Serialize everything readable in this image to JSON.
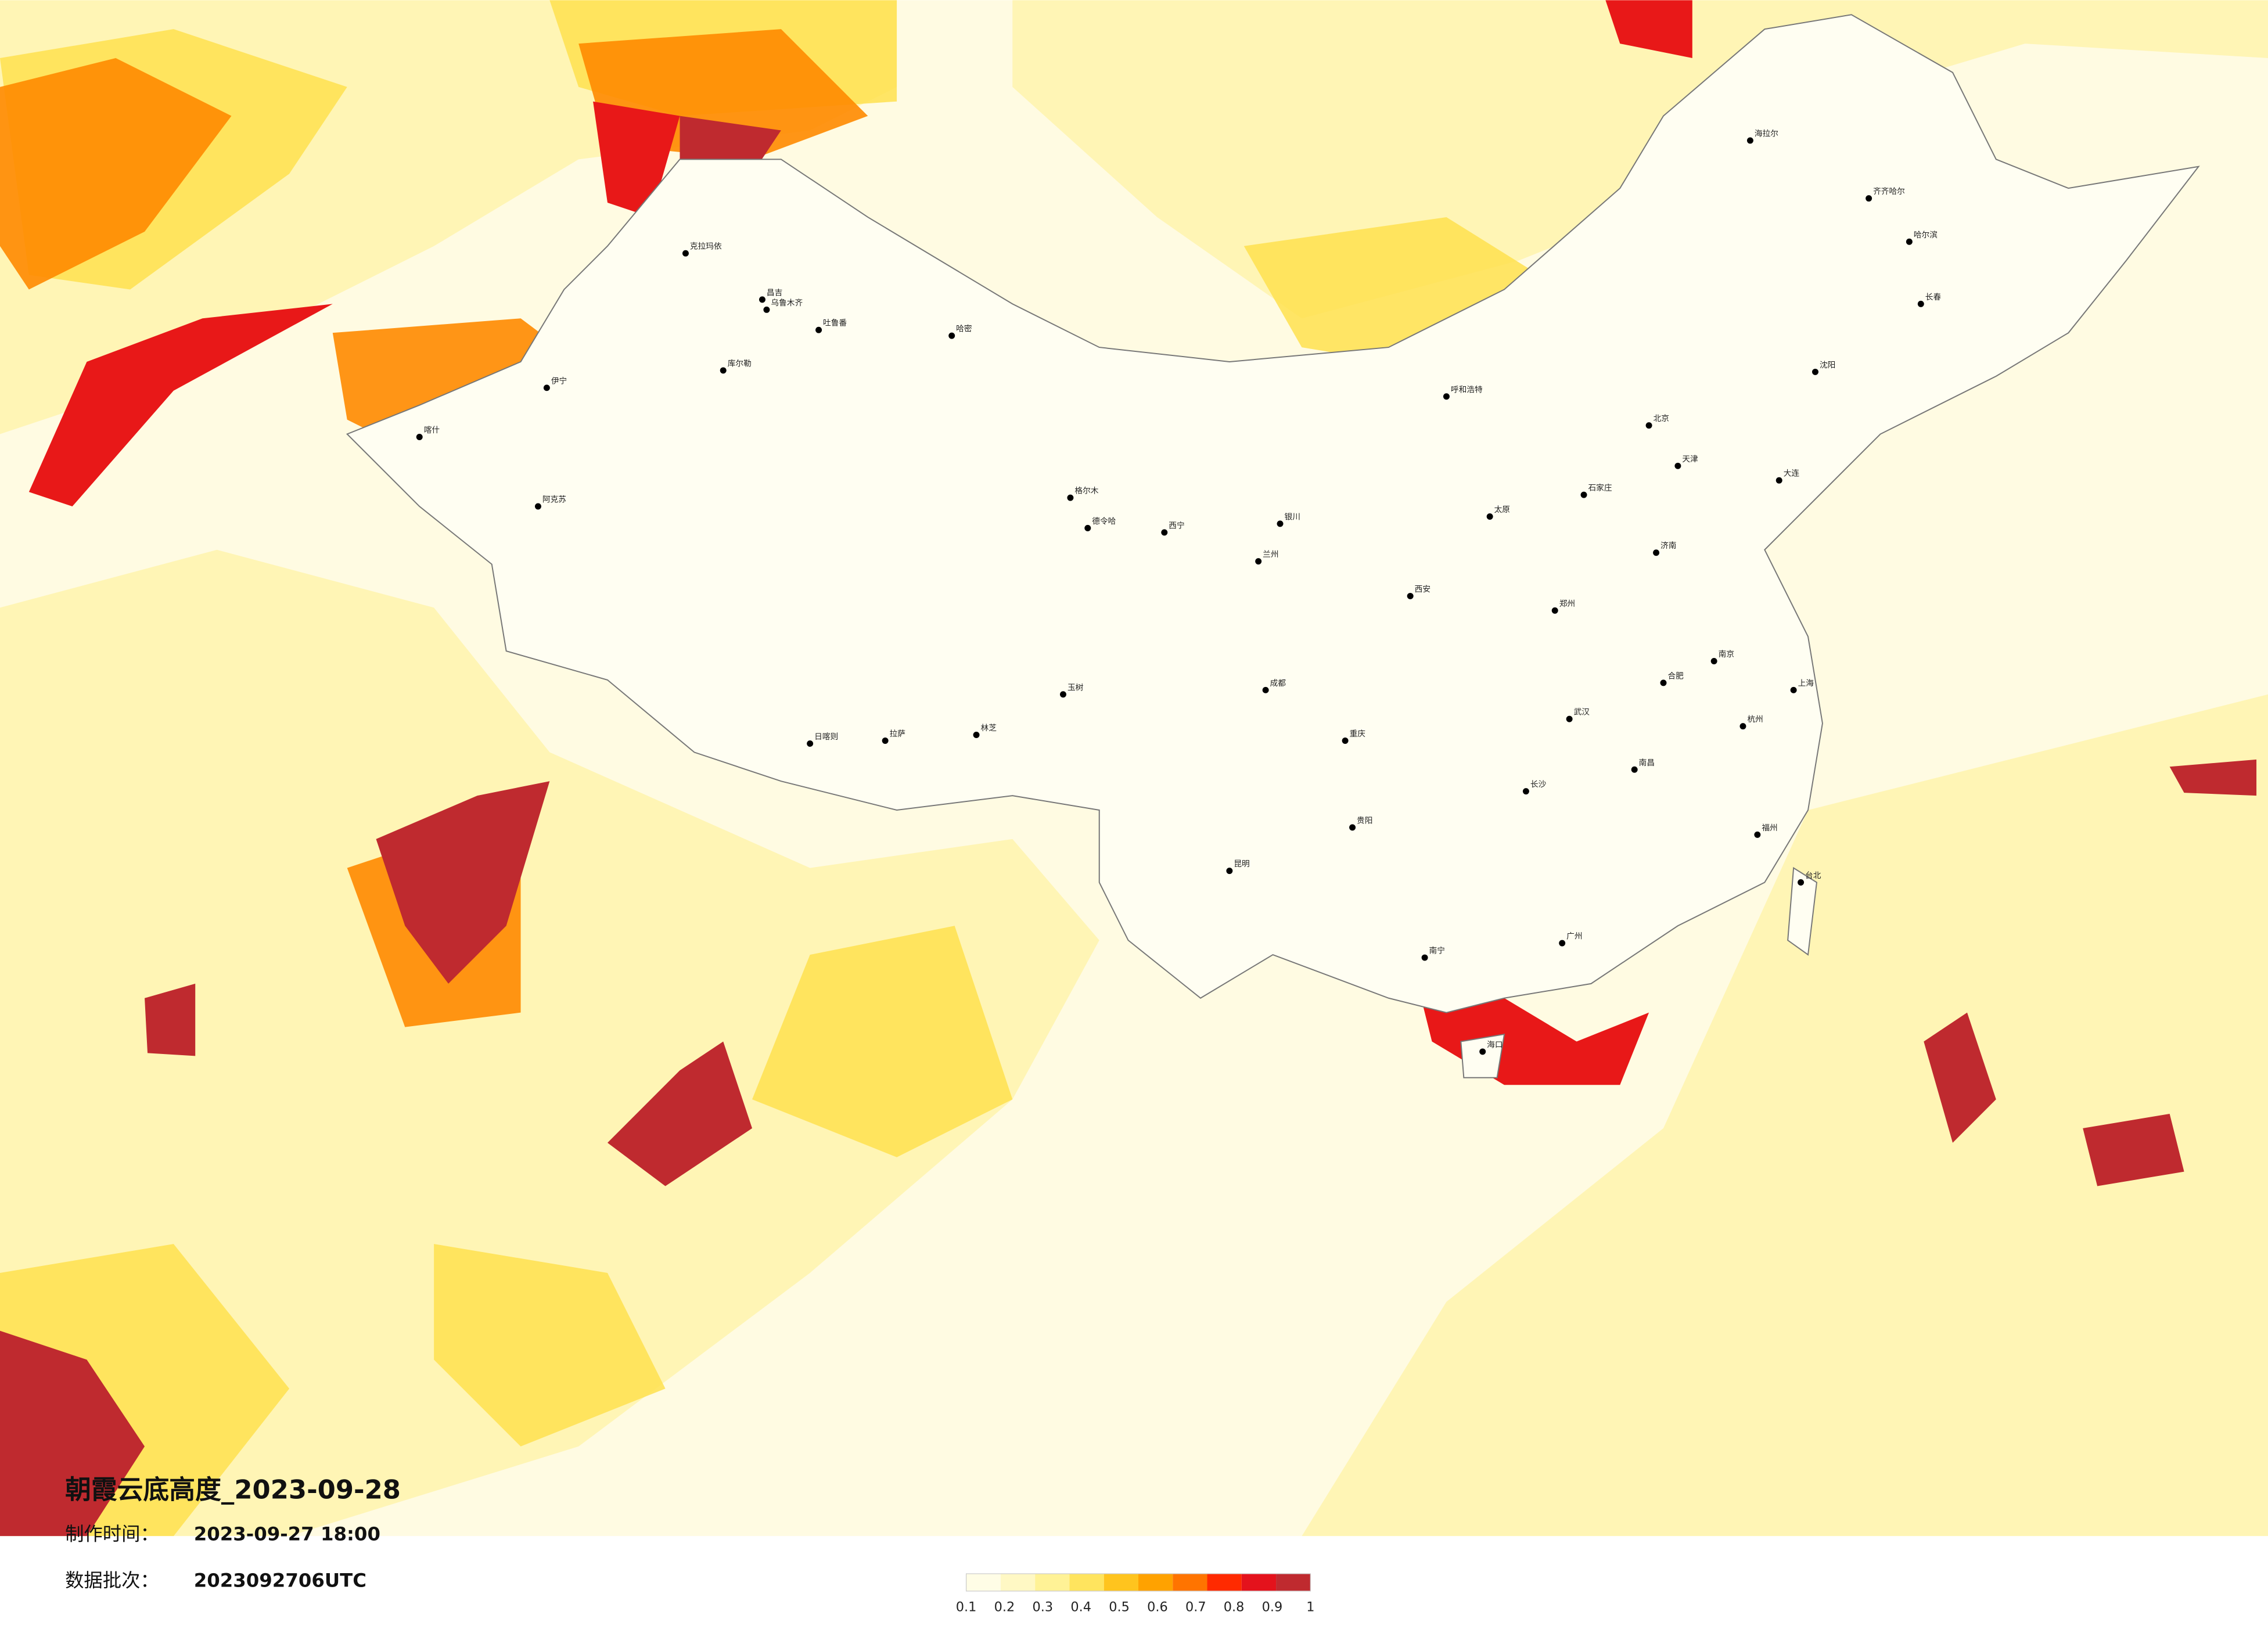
{
  "title": "朝霞云底高度_2023-09-28",
  "production_time_label": "制作时间：",
  "production_time": "2023-09-27 18:00",
  "batch_label": "数据批次：",
  "batch": "2023092706UTC",
  "legend": {
    "ticks": [
      0.1,
      0.2,
      0.3,
      0.4,
      0.5,
      0.6,
      0.7,
      0.8,
      0.9,
      1
    ],
    "colors": [
      "#fffde6",
      "#fff8c4",
      "#fff296",
      "#ffe45e",
      "#ffc41e",
      "#ffa200",
      "#ff7400",
      "#ff2a00",
      "#e4121c",
      "#bf2a2f"
    ]
  },
  "cities": [
    "克拉玛依",
    "昌吉",
    "乌鲁木齐",
    "吐鲁番",
    "哈密",
    "库尔勒",
    "伊宁",
    "喀什",
    "阿克苏",
    "格尔木",
    "德令哈",
    "玉树",
    "日喀则",
    "拉萨",
    "林芝",
    "西宁",
    "兰州",
    "银川",
    "呼和浩特",
    "北京",
    "天津",
    "石家庄",
    "太原",
    "济南",
    "郑州",
    "西安",
    "武汉",
    "长沙",
    "南昌",
    "南京",
    "合肥",
    "杭州",
    "上海",
    "福州",
    "广州",
    "南宁",
    "海口",
    "昆明",
    "贵阳",
    "成都",
    "重庆",
    "沈阳",
    "长春",
    "哈尔滨",
    "齐齐哈尔",
    "海拉尔",
    "大连",
    "台北"
  ]
}
